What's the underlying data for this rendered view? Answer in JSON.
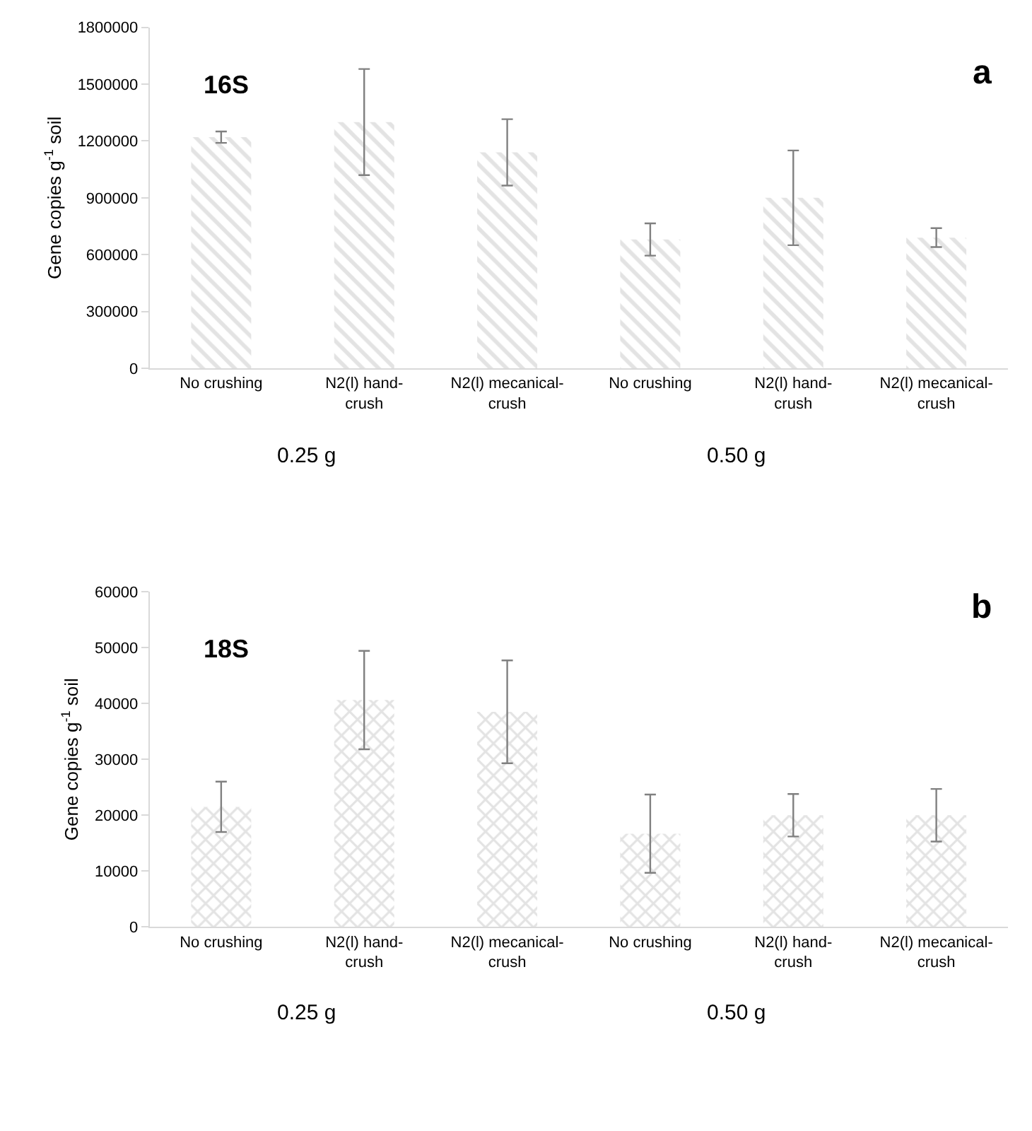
{
  "chart_data": [
    {
      "type": "bar",
      "title": "16S",
      "subtitle": "a",
      "ylabel": "Gene copies g$^{-1}$ soil",
      "categories": [
        "No crushing",
        "N2(l) hand-crush",
        "N2(l) mecanical-crush",
        "No crushing",
        "N2(l) hand-crush",
        "N2(l) mecanical-crush"
      ],
      "values": [
        1220000,
        1300000,
        1140000,
        680000,
        900000,
        690000
      ],
      "errors": [
        30000,
        280000,
        175000,
        85000,
        250000,
        50000
      ],
      "color": "#c8c8c8",
      "ylim": [
        0,
        1800000
      ],
      "yticks": [
        0,
        300000,
        600000,
        900000,
        1200000,
        1500000,
        1800000
      ],
      "annotations": [
        "0.25 g",
        "0.50 g"
      ]
    },
    {
      "type": "bar",
      "title": "18S",
      "subtitle": "b",
      "ylabel": "Gene copies g$^{-1}$ soil",
      "categories": [
        "No crushing",
        "N2(l) hand-crush",
        "N2(l) mecanical-crush",
        "No crushing",
        "N2(l) hand-crush",
        "N2(l) mecanical-crush"
      ],
      "values": [
        21500,
        40600,
        38500,
        16700,
        20000,
        20000
      ],
      "errors": [
        4500,
        8800,
        9200,
        7000,
        3800,
        4700
      ],
      "color": "#c8c8c8",
      "ylim": [
        0,
        60000
      ],
      "yticks": [
        0,
        10000,
        20000,
        30000,
        40000,
        50000,
        60000
      ],
      "annotations": [
        "0.25 g",
        "0.50 g"
      ]
    }
  ]
}
